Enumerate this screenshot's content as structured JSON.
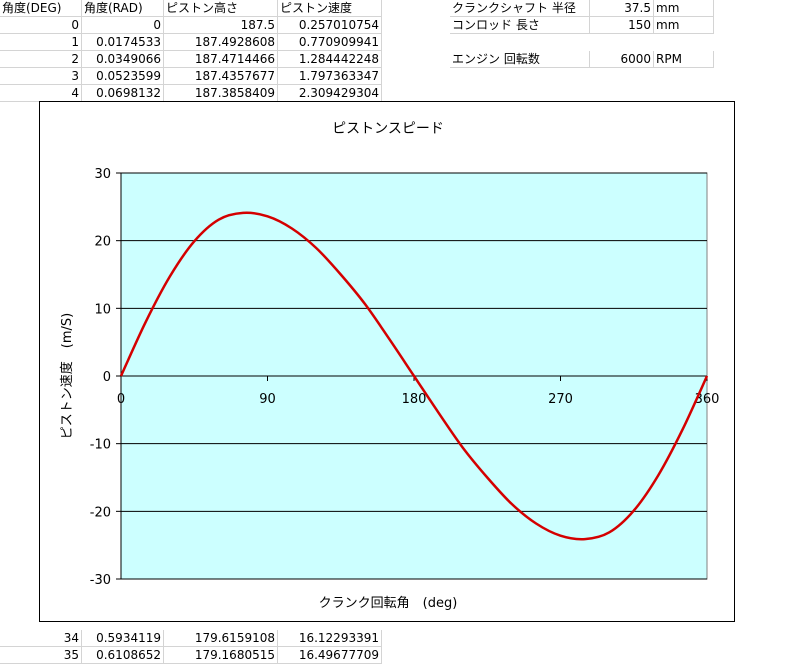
{
  "sheet": {
    "headers": [
      "角度(DEG)",
      "角度(RAD)",
      "ピストン高さ",
      "ピストン速度"
    ],
    "rows": [
      [
        "0",
        "0",
        "187.5",
        "0.257010754"
      ],
      [
        "1",
        "0.0174533",
        "187.4928608",
        "0.770909941"
      ],
      [
        "2",
        "0.0349066",
        "187.4714466",
        "1.284442248"
      ],
      [
        "3",
        "0.0523599",
        "187.4357677",
        "1.797363347"
      ],
      [
        "4",
        "0.0698132",
        "187.3858409",
        "2.309429304"
      ]
    ],
    "bottom_rows": [
      [
        "34",
        "0.5934119",
        "179.6159108",
        "16.12293391"
      ],
      [
        "35",
        "0.6108652",
        "179.1680515",
        "16.49677709"
      ]
    ],
    "params": [
      {
        "label": "クランクシャフト 半径",
        "value": "37.5",
        "unit": "mm"
      },
      {
        "label": "コンロッド 長さ",
        "value": "150",
        "unit": "mm"
      },
      {
        "label": "エンジン 回転数",
        "value": "6000",
        "unit": "RPM"
      }
    ]
  },
  "chart_data": {
    "type": "line",
    "title": "ピストンスピード",
    "xlabel": "クランク回転角　(deg)",
    "ylabel": "ピストン速度　(m/S)",
    "x_ticks": [
      "0",
      "90",
      "180",
      "270",
      "360"
    ],
    "y_ticks": [
      "30",
      "20",
      "10",
      "0",
      "-10",
      "-20",
      "-30"
    ],
    "xlim": [
      0,
      360
    ],
    "ylim": [
      -30,
      30
    ],
    "grid": "horizontal",
    "plot_bg": "#ccffff",
    "line_color": "#d40000",
    "series": [
      {
        "x": [
          0,
          15,
          30,
          45,
          60,
          75,
          90,
          105,
          120,
          135,
          150,
          165,
          180,
          195,
          210,
          225,
          240,
          255,
          270,
          285,
          300,
          315,
          330,
          345,
          360
        ],
        "values": [
          0,
          7.9,
          14.7,
          19.9,
          23.1,
          24.1,
          23.6,
          21.8,
          18.9,
          15.0,
          10.6,
          5.4,
          0,
          -5.4,
          -10.6,
          -15.0,
          -18.9,
          -21.8,
          -23.6,
          -24.1,
          -23.1,
          -19.9,
          -14.7,
          -7.9,
          0
        ]
      }
    ]
  }
}
